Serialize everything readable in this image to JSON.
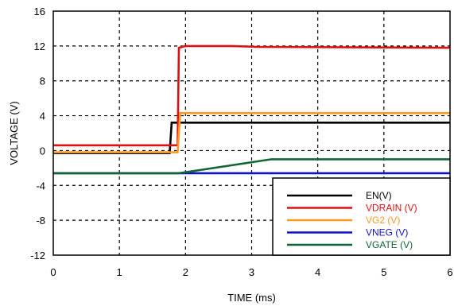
{
  "chart_data": {
    "type": "line",
    "title": "",
    "xlabel": "TIME (ms)",
    "ylabel": "VOLTAGE (V)",
    "xlim": [
      0,
      6
    ],
    "ylim": [
      -12,
      16
    ],
    "x_ticks": [
      0,
      1,
      2,
      3,
      4,
      5,
      6
    ],
    "x_tick_labels": [
      "0",
      "1",
      "2",
      "3",
      "4",
      "5",
      "6"
    ],
    "y_ticks": [
      -12,
      -8,
      -4,
      0,
      4,
      8,
      12,
      16
    ],
    "y_tick_labels": [
      "-12",
      "-8",
      "-4",
      "0",
      "4",
      "8",
      "12",
      "16"
    ],
    "grid": "dashed",
    "legend_position": "bottom-right",
    "series": [
      {
        "name": "EN(V)",
        "color": "#000000",
        "x": [
          0,
          1.68,
          1.76,
          1.79,
          6
        ],
        "y": [
          -0.3,
          -0.3,
          -0.3,
          3.2,
          3.2
        ]
      },
      {
        "name": "VDRAIN (V)",
        "color": "#dd1111",
        "x": [
          0,
          1.68,
          1.88,
          1.9,
          2.0,
          2.7,
          3.1,
          6
        ],
        "y": [
          0.6,
          0.6,
          0.6,
          11.8,
          12.0,
          12.0,
          11.9,
          11.8
        ]
      },
      {
        "name": "VG2 (V)",
        "color": "#ff9922",
        "x": [
          0,
          1.85,
          1.88,
          1.92,
          6
        ],
        "y": [
          -0.2,
          -0.2,
          -0.2,
          4.3,
          4.3
        ]
      },
      {
        "name": "VNEG (V)",
        "color": "#1111cc",
        "x": [
          0,
          6
        ],
        "y": [
          -2.6,
          -2.6
        ]
      },
      {
        "name": "VGATE (V)",
        "color": "#116633",
        "x": [
          0,
          1.9,
          3.3,
          6
        ],
        "y": [
          -2.6,
          -2.6,
          -1.0,
          -1.0
        ]
      }
    ]
  }
}
